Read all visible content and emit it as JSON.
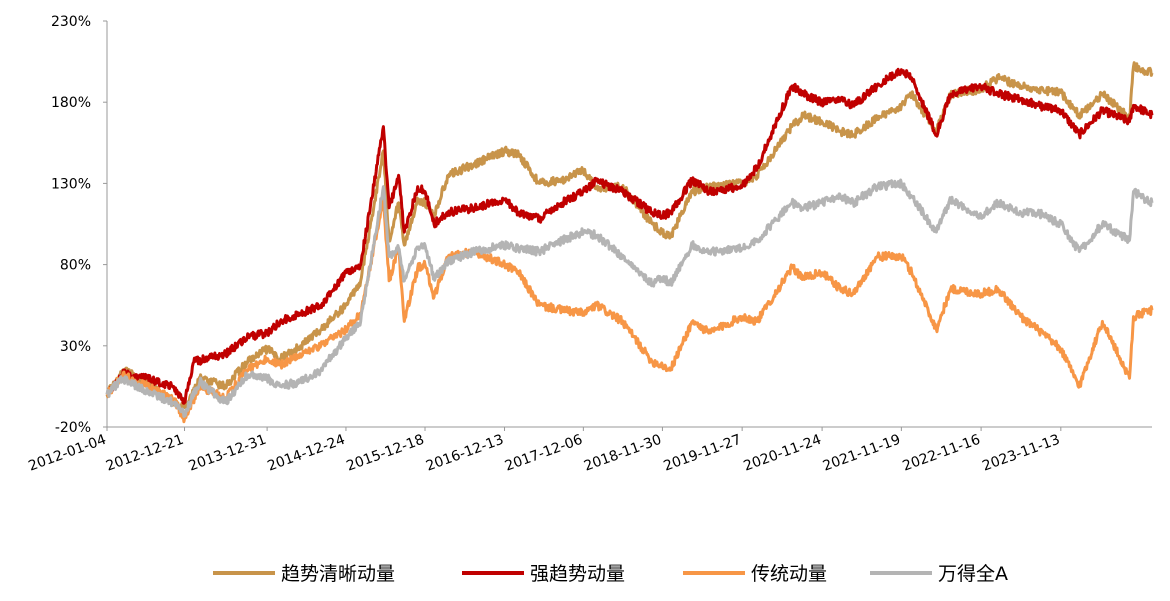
{
  "chart_data": {
    "type": "line",
    "title": "",
    "xlabel": "",
    "ylabel": "",
    "y_tick_labels": [
      "-20%",
      "30%",
      "80%",
      "130%",
      "180%",
      "230%"
    ],
    "y_ticks": [
      -20,
      30,
      80,
      130,
      180,
      230
    ],
    "ylim": [
      -20,
      230
    ],
    "x_tick_labels": [
      "2012-01-04",
      "2012-12-21",
      "2013-12-31",
      "2014-12-24",
      "2015-12-18",
      "2016-12-13",
      "2017-12-06",
      "2018-11-30",
      "2019-11-27",
      "2020-11-24",
      "2021-11-19",
      "2022-11-16",
      "2023-11-13"
    ],
    "xlim": [
      "2012-01-04",
      "2024-12-31"
    ],
    "grid": false,
    "legend_position": "bottom",
    "series": [
      {
        "name": "趋势清晰动量",
        "color": "#c8944a",
        "points": [
          [
            "2012-01-04",
            0
          ],
          [
            "2012-03-15",
            15
          ],
          [
            "2012-06-30",
            8
          ],
          [
            "2012-11-01",
            -5
          ],
          [
            "2012-12-21",
            -8
          ],
          [
            "2013-03-01",
            10
          ],
          [
            "2013-06-25",
            5
          ],
          [
            "2013-10-01",
            20
          ],
          [
            "2013-12-31",
            28
          ],
          [
            "2014-03-01",
            22
          ],
          [
            "2014-06-01",
            30
          ],
          [
            "2014-09-01",
            40
          ],
          [
            "2014-12-24",
            55
          ],
          [
            "2015-03-01",
            70
          ],
          [
            "2015-06-12",
            150
          ],
          [
            "2015-07-08",
            95
          ],
          [
            "2015-08-20",
            118
          ],
          [
            "2015-09-15",
            92
          ],
          [
            "2015-11-15",
            120
          ],
          [
            "2015-12-18",
            118
          ],
          [
            "2016-01-28",
            110
          ],
          [
            "2016-04-01",
            135
          ],
          [
            "2016-08-01",
            142
          ],
          [
            "2016-12-13",
            150
          ],
          [
            "2017-02-15",
            148
          ],
          [
            "2017-05-20",
            130
          ],
          [
            "2017-09-01",
            132
          ],
          [
            "2017-12-06",
            138
          ],
          [
            "2018-02-05",
            127
          ],
          [
            "2018-06-01",
            128
          ],
          [
            "2018-10-15",
            105
          ],
          [
            "2018-11-30",
            100
          ],
          [
            "2019-01-05",
            97
          ],
          [
            "2019-04-15",
            125
          ],
          [
            "2019-07-01",
            128
          ],
          [
            "2019-11-27",
            130
          ],
          [
            "2020-02-03",
            135
          ],
          [
            "2020-07-10",
            165
          ],
          [
            "2020-09-01",
            172
          ],
          [
            "2020-11-24",
            168
          ],
          [
            "2021-02-15",
            162
          ],
          [
            "2021-04-15",
            160
          ],
          [
            "2021-08-01",
            170
          ],
          [
            "2021-11-19",
            178
          ],
          [
            "2022-01-05",
            185
          ],
          [
            "2022-04-27",
            162
          ],
          [
            "2022-07-01",
            185
          ],
          [
            "2022-11-16",
            188
          ],
          [
            "2023-02-01",
            195
          ],
          [
            "2023-05-15",
            190
          ],
          [
            "2023-08-01",
            188
          ],
          [
            "2023-11-13",
            186
          ],
          [
            "2024-02-05",
            172
          ],
          [
            "2024-05-20",
            185
          ],
          [
            "2024-09-20",
            170
          ],
          [
            "2024-10-08",
            202
          ],
          [
            "2024-12-31",
            198
          ]
        ]
      },
      {
        "name": "强趋势动量",
        "color": "#c00000",
        "points": [
          [
            "2012-01-04",
            0
          ],
          [
            "2012-03-15",
            13
          ],
          [
            "2012-06-30",
            10
          ],
          [
            "2012-11-01",
            5
          ],
          [
            "2012-12-21",
            -5
          ],
          [
            "2013-02-01",
            20
          ],
          [
            "2013-06-25",
            25
          ],
          [
            "2013-10-01",
            35
          ],
          [
            "2013-12-31",
            38
          ],
          [
            "2014-03-01",
            45
          ],
          [
            "2014-06-01",
            50
          ],
          [
            "2014-09-01",
            55
          ],
          [
            "2014-12-24",
            75
          ],
          [
            "2015-03-01",
            80
          ],
          [
            "2015-06-12",
            165
          ],
          [
            "2015-07-08",
            115
          ],
          [
            "2015-08-20",
            135
          ],
          [
            "2015-09-15",
            100
          ],
          [
            "2015-11-15",
            128
          ],
          [
            "2015-12-18",
            125
          ],
          [
            "2016-01-28",
            105
          ],
          [
            "2016-04-01",
            112
          ],
          [
            "2016-08-01",
            115
          ],
          [
            "2016-12-13",
            120
          ],
          [
            "2017-02-15",
            112
          ],
          [
            "2017-05-20",
            108
          ],
          [
            "2017-09-01",
            118
          ],
          [
            "2017-12-06",
            125
          ],
          [
            "2018-02-05",
            132
          ],
          [
            "2018-06-01",
            125
          ],
          [
            "2018-10-15",
            112
          ],
          [
            "2018-11-30",
            110
          ],
          [
            "2019-01-05",
            112
          ],
          [
            "2019-04-15",
            132
          ],
          [
            "2019-07-01",
            125
          ],
          [
            "2019-11-27",
            128
          ],
          [
            "2020-02-03",
            140
          ],
          [
            "2020-07-10",
            190
          ],
          [
            "2020-09-01",
            185
          ],
          [
            "2020-11-24",
            180
          ],
          [
            "2021-02-15",
            182
          ],
          [
            "2021-04-15",
            178
          ],
          [
            "2021-08-01",
            190
          ],
          [
            "2021-11-19",
            200
          ],
          [
            "2022-01-05",
            195
          ],
          [
            "2022-04-27",
            160
          ],
          [
            "2022-07-01",
            185
          ],
          [
            "2022-11-16",
            190
          ],
          [
            "2023-02-01",
            185
          ],
          [
            "2023-05-15",
            182
          ],
          [
            "2023-08-01",
            178
          ],
          [
            "2023-11-13",
            175
          ],
          [
            "2024-02-05",
            160
          ],
          [
            "2024-05-20",
            175
          ],
          [
            "2024-09-20",
            168
          ],
          [
            "2024-10-08",
            178
          ],
          [
            "2024-12-31",
            172
          ]
        ]
      },
      {
        "name": "传统动量",
        "color": "#f79646",
        "points": [
          [
            "2012-01-04",
            0
          ],
          [
            "2012-03-15",
            12
          ],
          [
            "2012-06-30",
            5
          ],
          [
            "2012-11-01",
            -3
          ],
          [
            "2012-12-21",
            -15
          ],
          [
            "2013-03-01",
            5
          ],
          [
            "2013-06-25",
            -2
          ],
          [
            "2013-10-01",
            15
          ],
          [
            "2013-12-31",
            22
          ],
          [
            "2014-03-01",
            18
          ],
          [
            "2014-06-01",
            25
          ],
          [
            "2014-09-01",
            30
          ],
          [
            "2014-12-24",
            40
          ],
          [
            "2015-03-01",
            50
          ],
          [
            "2015-06-12",
            120
          ],
          [
            "2015-07-08",
            70
          ],
          [
            "2015-08-20",
            90
          ],
          [
            "2015-09-15",
            45
          ],
          [
            "2015-11-15",
            78
          ],
          [
            "2015-12-18",
            80
          ],
          [
            "2016-01-28",
            60
          ],
          [
            "2016-04-01",
            85
          ],
          [
            "2016-08-01",
            88
          ],
          [
            "2016-12-13",
            80
          ],
          [
            "2017-02-15",
            75
          ],
          [
            "2017-05-20",
            55
          ],
          [
            "2017-09-01",
            52
          ],
          [
            "2017-12-06",
            50
          ],
          [
            "2018-02-05",
            55
          ],
          [
            "2018-06-01",
            45
          ],
          [
            "2018-10-15",
            20
          ],
          [
            "2018-11-30",
            18
          ],
          [
            "2019-01-05",
            15
          ],
          [
            "2019-04-15",
            45
          ],
          [
            "2019-07-01",
            38
          ],
          [
            "2019-11-27",
            48
          ],
          [
            "2020-02-03",
            45
          ],
          [
            "2020-07-10",
            78
          ],
          [
            "2020-09-01",
            72
          ],
          [
            "2020-11-24",
            75
          ],
          [
            "2021-02-15",
            65
          ],
          [
            "2021-04-15",
            62
          ],
          [
            "2021-08-01",
            85
          ],
          [
            "2021-11-19",
            85
          ],
          [
            "2022-01-05",
            75
          ],
          [
            "2022-04-27",
            40
          ],
          [
            "2022-07-01",
            65
          ],
          [
            "2022-11-16",
            62
          ],
          [
            "2023-02-01",
            65
          ],
          [
            "2023-05-15",
            48
          ],
          [
            "2023-08-01",
            40
          ],
          [
            "2023-11-13",
            28
          ],
          [
            "2024-02-05",
            5
          ],
          [
            "2024-05-20",
            45
          ],
          [
            "2024-09-20",
            10
          ],
          [
            "2024-10-08",
            48
          ],
          [
            "2024-12-31",
            52
          ]
        ]
      },
      {
        "name": "万得全A",
        "color": "#b4b4b4",
        "points": [
          [
            "2012-01-04",
            0
          ],
          [
            "2012-03-15",
            10
          ],
          [
            "2012-06-30",
            2
          ],
          [
            "2012-11-01",
            -5
          ],
          [
            "2012-12-21",
            -12
          ],
          [
            "2013-03-01",
            8
          ],
          [
            "2013-06-25",
            -5
          ],
          [
            "2013-10-01",
            12
          ],
          [
            "2013-12-31",
            10
          ],
          [
            "2014-03-01",
            5
          ],
          [
            "2014-06-01",
            8
          ],
          [
            "2014-09-01",
            15
          ],
          [
            "2014-12-24",
            35
          ],
          [
            "2015-03-01",
            45
          ],
          [
            "2015-06-12",
            128
          ],
          [
            "2015-07-08",
            85
          ],
          [
            "2015-08-20",
            90
          ],
          [
            "2015-09-15",
            70
          ],
          [
            "2015-11-15",
            90
          ],
          [
            "2015-12-18",
            92
          ],
          [
            "2016-01-28",
            72
          ],
          [
            "2016-04-01",
            82
          ],
          [
            "2016-08-01",
            88
          ],
          [
            "2016-12-13",
            92
          ],
          [
            "2017-02-15",
            90
          ],
          [
            "2017-05-20",
            88
          ],
          [
            "2017-09-01",
            95
          ],
          [
            "2017-12-06",
            100
          ],
          [
            "2018-02-05",
            98
          ],
          [
            "2018-06-01",
            85
          ],
          [
            "2018-10-15",
            68
          ],
          [
            "2018-11-30",
            72
          ],
          [
            "2019-01-05",
            68
          ],
          [
            "2019-04-15",
            92
          ],
          [
            "2019-07-01",
            88
          ],
          [
            "2019-11-27",
            90
          ],
          [
            "2020-02-03",
            95
          ],
          [
            "2020-07-10",
            118
          ],
          [
            "2020-09-01",
            115
          ],
          [
            "2020-11-24",
            118
          ],
          [
            "2021-02-15",
            122
          ],
          [
            "2021-04-15",
            118
          ],
          [
            "2021-08-01",
            128
          ],
          [
            "2021-11-19",
            130
          ],
          [
            "2022-01-05",
            122
          ],
          [
            "2022-04-27",
            100
          ],
          [
            "2022-07-01",
            120
          ],
          [
            "2022-11-16",
            110
          ],
          [
            "2023-02-01",
            118
          ],
          [
            "2023-05-15",
            112
          ],
          [
            "2023-08-01",
            112
          ],
          [
            "2023-11-13",
            105
          ],
          [
            "2024-02-05",
            88
          ],
          [
            "2024-05-20",
            105
          ],
          [
            "2024-09-20",
            95
          ],
          [
            "2024-10-08",
            125
          ],
          [
            "2024-12-31",
            118
          ]
        ]
      }
    ]
  }
}
